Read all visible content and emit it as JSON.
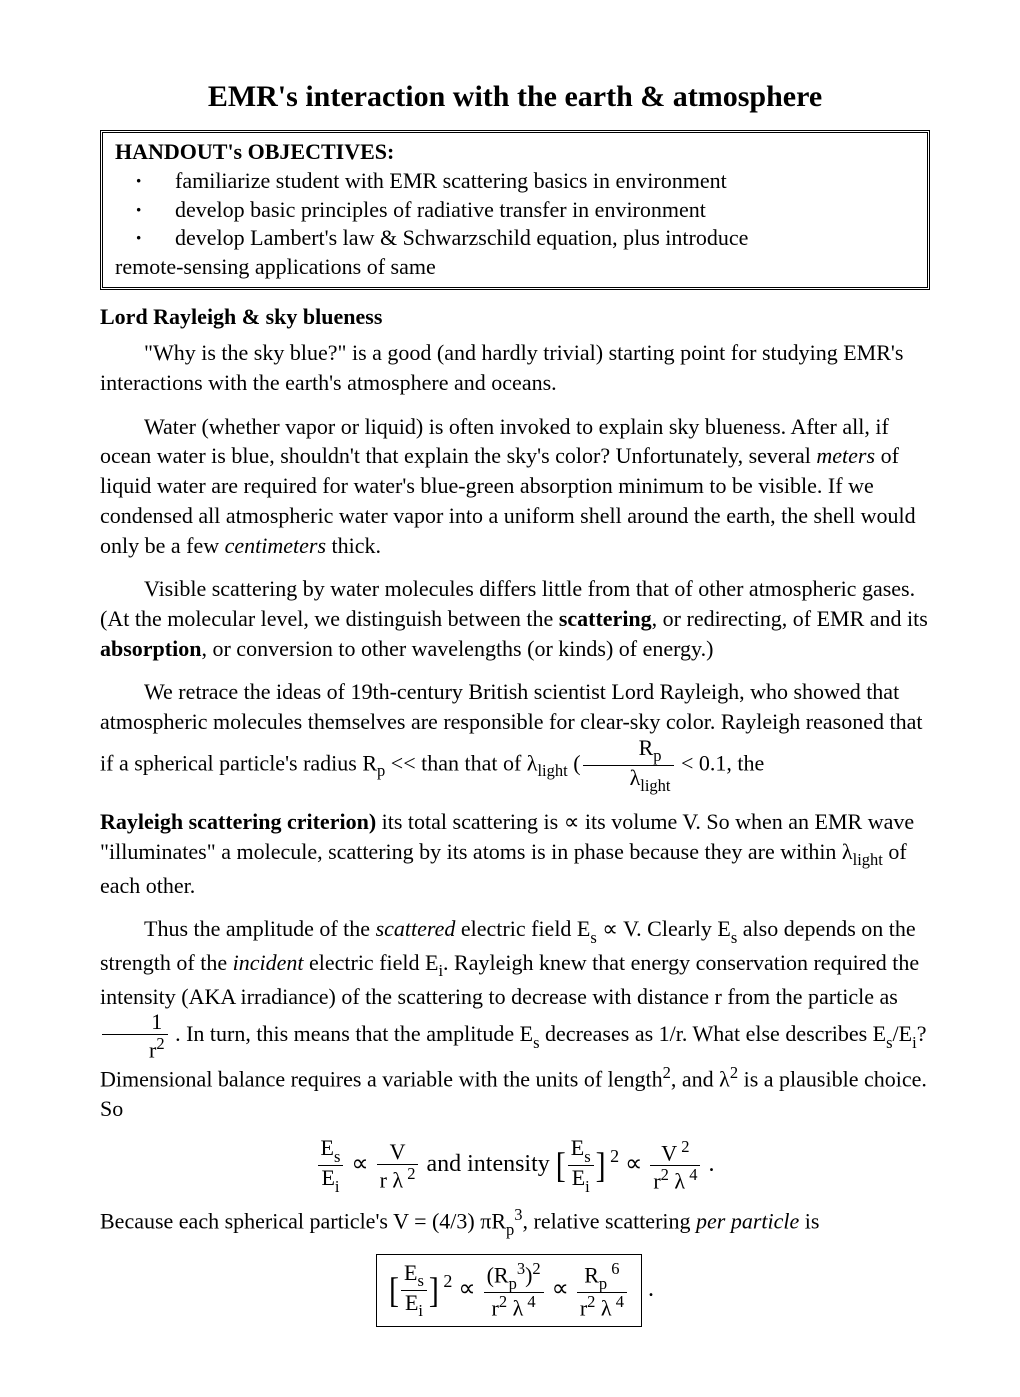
{
  "title": "EMR's interaction with the earth & atmosphere",
  "objectives": {
    "heading": "HANDOUT's  OBJECTIVES:",
    "items": [
      "familiarize student with EMR scattering basics in environment",
      "develop basic principles of radiative transfer in environment",
      "develop Lambert's law & Schwarzschild equation, plus introduce"
    ],
    "trailing": "remote-sensing applications of same"
  },
  "section1": {
    "heading": "Lord  Rayleigh  &  sky  blueness",
    "p1a": "\"Why is the sky blue?\" is a good (and hardly trivial) starting point for studying EMR's interactions with the earth's atmosphere and oceans.",
    "p2a": "Water (whether vapor or liquid) is often invoked to explain sky blueness.  After all, if ocean water is blue, shouldn't that explain the sky's color?  Unfortunately, several ",
    "p2b": "meters",
    "p2c": " of liquid water are required for water's blue-green absorption minimum to be visible.  If we condensed all atmospheric water vapor into a uniform shell around the earth, the shell would only be a few ",
    "p2d": "centimeters",
    "p2e": " thick.",
    "p3a": "Visible scattering by water molecules differs little from that of other atmospheric gases.  (At the molecular level, we distinguish between the ",
    "p3b": "scattering",
    "p3c": ", or redirecting, of EMR and its ",
    "p3d": "absorption",
    "p3e": ", or conversion to other wavelengths (or kinds) of energy.)",
    "p4a": "We retrace the ideas of 19th-century British scientist Lord Rayleigh, who showed that atmospheric molecules themselves are responsible for clear-sky color.  Rayleigh reasoned that if a spherical particle's radius  R",
    "p4b": "  <<  than that of λ",
    "p4c": " (",
    "p4_fracnum": "R",
    "p4_fracnum_sub": "p",
    "p4_fracden": "λ",
    "p4_fracden_sub": "light",
    "p4d": " < 0.1, the ",
    "p5a": "Rayleigh scattering criterion)",
    "p5b": " its total scattering is  ∝  its volume  V.  So when an EMR wave \"illuminates\" a molecule, scattering by its atoms is in phase because they are within  λ",
    "p5c": "  of each other.",
    "p6a": "Thus the amplitude of the ",
    "p6b": "scattered",
    "p6c": " electric field E",
    "p6d": "  ∝  V.  Clearly  E",
    "p6e": "  also depends on the strength of the ",
    "p6f": "incident",
    "p6g": " electric field  E",
    "p6h": ".  Rayleigh knew that energy conservation required the intensity (AKA irradiance) of the scattering to decrease with distance  r  from the particle as ",
    "p6_frac2num": "1",
    "p6_frac2den": "r",
    "p6i": " .  In turn, this means that the amplitude  E",
    "p6j": " decreases as  1/r.  What else describes E",
    "p6k": "/E",
    "p6l": "?  Dimensional balance requires a variable with the units of length",
    "p6m": ", and  λ",
    "p6n": "  is a plausible choice.  So",
    "eq1_left_num": "E",
    "eq1_left_num_sub": "s",
    "eq1_left_den": "E",
    "eq1_left_den_sub": "i",
    "eq1_prop": "  ∝  ",
    "eq1_r_num": "V",
    "eq1_r_den1": "r  λ",
    "eq1_r_den_sup": " 2",
    "eq1_and": "   and   intensity  ",
    "eq1_sqnum": "E",
    "eq1_sqden": "E",
    "eq1_sup2": " 2",
    "eq1_r2num": "V",
    "eq1_r2num_sup": " 2",
    "eq1_r2den": "r",
    "eq1_r2den_b": "  λ",
    "eq1_r2den_sup4": " 4",
    "eq1_r2den_sup2": "2",
    "eq1_period": " .",
    "p7a": "Because each spherical particle's  V  =  (4/3) πR",
    "p7b": "p",
    "p7c": "3",
    "p7d": ",  relative scattering ",
    "p7e": "per particle",
    "p7f": "  is",
    "eq2_ln": "E",
    "eq2_ld": "E",
    "eq2_sup2": " 2",
    "eq2_prop": "   ∝   ",
    "eq2_m_num": "(R",
    "eq2_m_num_sup3": "3",
    "eq2_m_num_end": ")",
    "eq2_m_num_sup2": "2",
    "eq2_m_den_r": "r",
    "eq2_m_den_lam": "  λ",
    "eq2_m_den_sup4": " 4",
    "eq2_m_den_sup2": "2",
    "eq2_r_num": "R",
    "eq2_r_num_sup6": " 6",
    "eq2_r_den_r": "r",
    "eq2_r_den_lam": "  λ",
    "eq2_r_den_sup4": " 4",
    "eq2_r_den_sup2": "2",
    "eq2_period": " .",
    "sub_p": "p",
    "sub_light": "light",
    "sub_s": "s",
    "sub_i": "i",
    "sup_2": "2"
  }
}
